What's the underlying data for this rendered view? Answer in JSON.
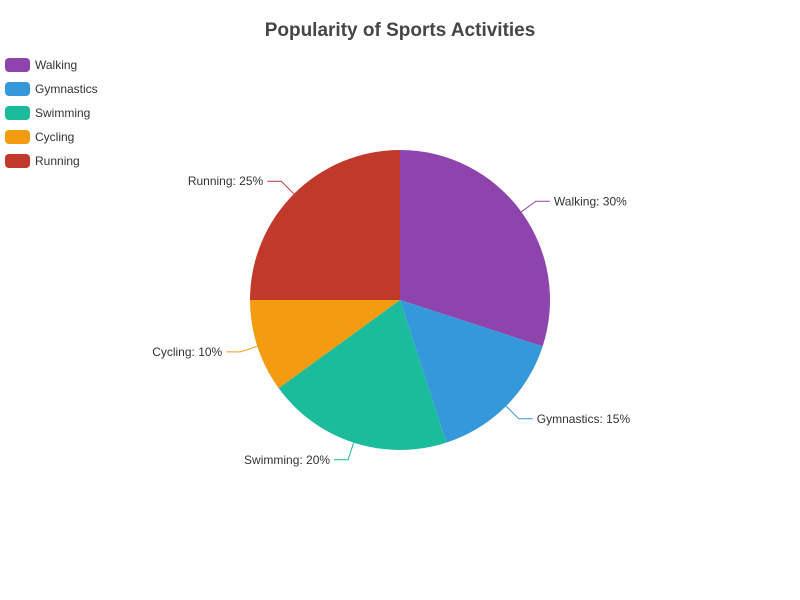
{
  "chart_data": {
    "type": "pie",
    "title": "Popularity of Sports Activities",
    "legend_position": "top-left",
    "slices": [
      {
        "name": "Walking",
        "value": 30,
        "label": "Walking: 30%",
        "color": "#8e44ad"
      },
      {
        "name": "Gymnastics",
        "value": 15,
        "label": "Gymnastics: 15%",
        "color": "#3498db"
      },
      {
        "name": "Swimming",
        "value": 20,
        "label": "Swimming: 20%",
        "color": "#1abc9c"
      },
      {
        "name": "Cycling",
        "value": 10,
        "label": "Cycling: 10%",
        "color": "#f39c12"
      },
      {
        "name": "Running",
        "value": 25,
        "label": "Running: 25%",
        "color": "#c0392b"
      }
    ]
  }
}
